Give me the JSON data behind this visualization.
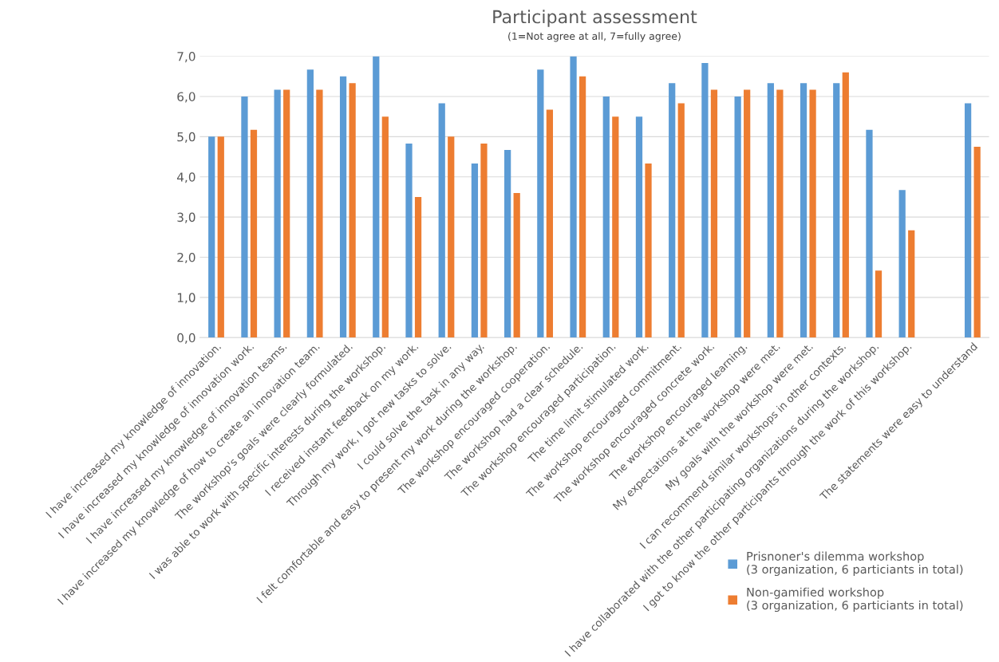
{
  "chart_data": {
    "type": "bar",
    "title": "Participant assessment",
    "subtitle": "(1=Not agree at all, 7=fully agree)",
    "categories": [
      "I have increased my knowledge of innovation.",
      "I have increased my knowledge of innovation work.",
      "I have increased my knowledge of innovation teams.",
      "I have increased my knowledge of how to create an innovation team.",
      "The workshop's goals were clearly formulated.",
      "I was able to work with specific interests during the workshop.",
      "I received instant feedback on my work.",
      "Through my work, I got new tasks to solve.",
      "I could solve the task in any way.",
      "I felt comfortable and easy to present my work during the workshop.",
      "The workshop encouraged cooperation.",
      "The workshop had a clear schedule.",
      "The workshop encouraged participation.",
      "The time limit stimulated work.",
      "The workshop encouraged commitment.",
      "The workshop encouraged concrete work.",
      "The workshop encouraged learning.",
      "My expectations at the workshop were met.",
      "My goals with the workshop were met.",
      "I can recommend similar workshops in other contexts.",
      "I have collaborated with the other participating organizations during the workshop.",
      "I got to know the other participants through the work of this workshop.",
      null,
      "The statements were easy to understand"
    ],
    "series": [
      {
        "name": "Prisnoner's dilemma workshop\n(3 organization, 6 particiants in total)",
        "color": "#5b9bd5",
        "values": [
          5.0,
          6.0,
          6.17,
          6.67,
          6.5,
          7.0,
          4.83,
          5.83,
          4.33,
          4.67,
          6.67,
          7.0,
          6.0,
          5.5,
          6.33,
          6.83,
          6.0,
          6.33,
          6.33,
          6.33,
          5.17,
          3.67,
          null,
          5.83
        ]
      },
      {
        "name": "Non-gamified workshop\n(3 organization, 6 particiants in total)",
        "color": "#ed7d31",
        "values": [
          5.0,
          5.17,
          6.17,
          6.17,
          6.33,
          5.5,
          3.5,
          5.0,
          4.83,
          3.6,
          5.67,
          6.5,
          5.5,
          4.33,
          5.83,
          6.17,
          6.17,
          6.17,
          6.17,
          6.6,
          1.67,
          2.67,
          null,
          4.75
        ]
      }
    ],
    "ylim": [
      0,
      7
    ],
    "yticks": [
      {
        "value": 0,
        "label": "0,0"
      },
      {
        "value": 1,
        "label": "1,0"
      },
      {
        "value": 2,
        "label": "2,0"
      },
      {
        "value": 3,
        "label": "3,0"
      },
      {
        "value": 4,
        "label": "4,0"
      },
      {
        "value": 5,
        "label": "5,0"
      },
      {
        "value": 6,
        "label": "6,0"
      },
      {
        "value": 7,
        "label": "7,0"
      }
    ],
    "grid": "y",
    "legend": "bottom right"
  }
}
